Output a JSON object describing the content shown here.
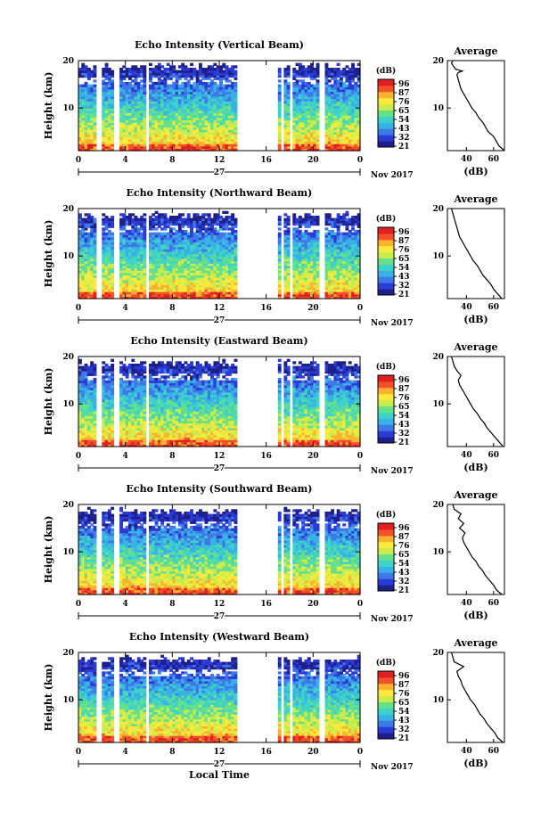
{
  "figure": {
    "x_label": "Local Time",
    "date_label": "Nov 2017",
    "day_label": "27",
    "cbar_label": "(dB)",
    "avg_title": "Average",
    "avg_xlabel": "(dB)"
  },
  "colors": {
    "colormap": [
      "#1f1f8c",
      "#2b3bd6",
      "#3f79e8",
      "#37b1e6",
      "#3ed3c8",
      "#67e08a",
      "#c8ec4e",
      "#fbea3c",
      "#fbb32f",
      "#f5502a",
      "#e01f1f"
    ]
  },
  "chart_data": [
    {
      "type": "heatmap",
      "title": "Echo Intensity (Vertical Beam)",
      "ylabel": "Height (km)",
      "xlim": [
        0,
        24
      ],
      "ylim": [
        1,
        20
      ],
      "x_ticks": [
        "0",
        "4",
        "8",
        "12",
        "16",
        "20",
        "0"
      ],
      "y_ticks": [
        "20",
        "10"
      ],
      "colorbar": {
        "ticks": [
          "96",
          "87",
          "76",
          "65",
          "54",
          "43",
          "32",
          "21"
        ],
        "range": [
          21,
          96
        ]
      },
      "data_gaps_hours": [
        [
          1.7,
          2.0
        ],
        [
          3.2,
          3.5
        ],
        [
          5.8,
          6.0
        ],
        [
          13.6,
          16.8
        ],
        [
          17.3,
          17.5
        ],
        [
          18.0,
          18.1
        ],
        [
          20.6,
          20.9
        ]
      ],
      "average_profile": {
        "title": "Average",
        "xlabel": "(dB)",
        "x_ticks": [
          "40",
          "60"
        ],
        "y_ticks": [
          "20",
          "10"
        ],
        "xlim": [
          26,
          68
        ],
        "ylim": [
          1,
          20
        ],
        "dB": [
          68,
          64,
          62,
          60,
          56,
          54,
          52,
          49,
          47,
          44,
          42,
          40,
          38,
          36,
          35,
          34,
          33,
          34,
          37,
          32,
          31,
          30,
          29,
          30
        ],
        "height_km": [
          1,
          2,
          3,
          4,
          5,
          6,
          7,
          8,
          9,
          10,
          11,
          12,
          13,
          14,
          15,
          16,
          17,
          17.5,
          17.8,
          18.2,
          18.6,
          19,
          19.5,
          20
        ]
      }
    },
    {
      "type": "heatmap",
      "title": "Echo Intensity (Northward Beam)",
      "ylabel": "Height (km)",
      "xlim": [
        0,
        24
      ],
      "ylim": [
        1,
        20
      ],
      "x_ticks": [
        "0",
        "4",
        "8",
        "12",
        "16",
        "20",
        "0"
      ],
      "y_ticks": [
        "20",
        "10"
      ],
      "colorbar": {
        "ticks": [
          "96",
          "87",
          "76",
          "65",
          "54",
          "43",
          "32",
          "21"
        ],
        "range": [
          21,
          96
        ]
      },
      "data_gaps_hours": [
        [
          1.7,
          2.0
        ],
        [
          3.2,
          3.5
        ],
        [
          5.8,
          6.0
        ],
        [
          13.6,
          16.8
        ],
        [
          17.3,
          17.5
        ],
        [
          18.0,
          18.1
        ],
        [
          20.6,
          20.9
        ]
      ],
      "average_profile": {
        "title": "Average",
        "xlabel": "(dB)",
        "x_ticks": [
          "40",
          "60"
        ],
        "y_ticks": [
          "20",
          "10"
        ],
        "xlim": [
          26,
          68
        ],
        "ylim": [
          1,
          20
        ],
        "dB": [
          66,
          63,
          60,
          58,
          55,
          52,
          50,
          48,
          45,
          43,
          41,
          39,
          37,
          35,
          34,
          33,
          32,
          31,
          30,
          29
        ],
        "height_km": [
          1,
          2,
          3,
          4,
          5,
          6,
          7,
          8,
          9,
          10,
          11,
          12,
          13,
          14,
          15,
          16,
          17,
          18,
          19,
          20
        ]
      }
    },
    {
      "type": "heatmap",
      "title": "Echo Intensity (Eastward Beam)",
      "ylabel": "Height (km)",
      "xlim": [
        0,
        24
      ],
      "ylim": [
        1,
        20
      ],
      "x_ticks": [
        "0",
        "4",
        "8",
        "12",
        "16",
        "20",
        "0"
      ],
      "y_ticks": [
        "20",
        "10"
      ],
      "colorbar": {
        "ticks": [
          "96",
          "87",
          "76",
          "65",
          "54",
          "43",
          "32",
          "21"
        ],
        "range": [
          21,
          96
        ]
      },
      "data_gaps_hours": [
        [
          1.7,
          2.0
        ],
        [
          3.2,
          3.5
        ],
        [
          5.8,
          6.0
        ],
        [
          13.6,
          16.8
        ],
        [
          17.3,
          17.5
        ],
        [
          18.0,
          18.1
        ],
        [
          20.6,
          20.9
        ]
      ],
      "average_profile": {
        "title": "Average",
        "xlabel": "(dB)",
        "x_ticks": [
          "40",
          "60"
        ],
        "y_ticks": [
          "20",
          "10"
        ],
        "xlim": [
          26,
          68
        ],
        "ylim": [
          1,
          20
        ],
        "dB": [
          67,
          64,
          61,
          58,
          55,
          53,
          50,
          48,
          45,
          43,
          41,
          39,
          37,
          35,
          34,
          36,
          33,
          31,
          30,
          29
        ],
        "height_km": [
          1,
          2,
          3,
          4,
          5,
          6,
          7,
          8,
          9,
          10,
          11,
          12,
          13,
          14,
          15,
          16,
          17,
          18,
          19,
          20
        ]
      }
    },
    {
      "type": "heatmap",
      "title": "Echo Intensity (Southward Beam)",
      "ylabel": "Height (km)",
      "xlim": [
        0,
        24
      ],
      "ylim": [
        1,
        20
      ],
      "x_ticks": [
        "0",
        "4",
        "8",
        "12",
        "16",
        "20",
        "0"
      ],
      "y_ticks": [
        "20",
        "10"
      ],
      "colorbar": {
        "ticks": [
          "96",
          "87",
          "76",
          "65",
          "54",
          "43",
          "32",
          "21"
        ],
        "range": [
          21,
          96
        ]
      },
      "data_gaps_hours": [
        [
          1.7,
          2.0
        ],
        [
          3.2,
          3.5
        ],
        [
          5.8,
          6.0
        ],
        [
          13.6,
          16.8
        ],
        [
          17.3,
          17.5
        ],
        [
          18.0,
          18.1
        ],
        [
          20.6,
          20.9
        ]
      ],
      "average_profile": {
        "title": "Average",
        "xlabel": "(dB)",
        "x_ticks": [
          "40",
          "60"
        ],
        "y_ticks": [
          "20",
          "10"
        ],
        "xlim": [
          26,
          68
        ],
        "ylim": [
          1,
          20
        ],
        "dB": [
          66,
          62,
          60,
          57,
          54,
          52,
          49,
          47,
          44,
          42,
          40,
          38,
          37,
          39,
          35,
          38,
          34,
          36,
          31,
          30
        ],
        "height_km": [
          1,
          2,
          3,
          4,
          5,
          6,
          7,
          8,
          9,
          10,
          11,
          12,
          13,
          14,
          15,
          16,
          17,
          18,
          19,
          20
        ]
      }
    },
    {
      "type": "heatmap",
      "title": "Echo Intensity (Westward Beam)",
      "ylabel": "Height (km)",
      "xlim": [
        0,
        24
      ],
      "ylim": [
        1,
        20
      ],
      "x_ticks": [
        "0",
        "4",
        "8",
        "12",
        "16",
        "20",
        "0"
      ],
      "y_ticks": [
        "20",
        "10"
      ],
      "colorbar": {
        "ticks": [
          "96",
          "87",
          "76",
          "65",
          "54",
          "43",
          "32",
          "21"
        ],
        "range": [
          21,
          96
        ]
      },
      "data_gaps_hours": [
        [
          1.7,
          2.0
        ],
        [
          3.2,
          3.5
        ],
        [
          5.8,
          6.0
        ],
        [
          13.6,
          16.8
        ],
        [
          17.3,
          17.5
        ],
        [
          18.0,
          18.1
        ],
        [
          20.6,
          20.9
        ]
      ],
      "average_profile": {
        "title": "Average",
        "xlabel": "(dB)",
        "x_ticks": [
          "40",
          "60"
        ],
        "y_ticks": [
          "20",
          "10"
        ],
        "xlim": [
          26,
          68
        ],
        "ylim": [
          1,
          20
        ],
        "dB": [
          67,
          63,
          61,
          58,
          55,
          53,
          50,
          48,
          46,
          43,
          41,
          39,
          37,
          36,
          34,
          33,
          38,
          31,
          30,
          29
        ],
        "height_km": [
          1,
          2,
          3,
          4,
          5,
          6,
          7,
          8,
          9,
          10,
          11,
          12,
          13,
          14,
          15,
          16,
          17,
          18,
          19,
          20
        ]
      }
    }
  ]
}
